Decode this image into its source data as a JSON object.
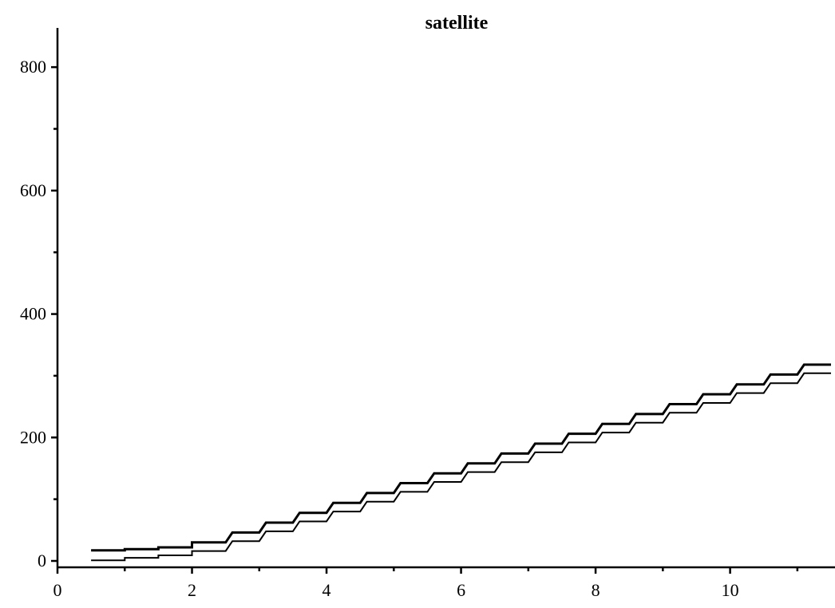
{
  "chart_data": {
    "type": "line",
    "title": "satellite",
    "xlabel": "",
    "ylabel": "",
    "xlim": [
      0,
      11.5
    ],
    "ylim": [
      0,
      870
    ],
    "x_ticks_major": [
      0,
      2,
      4,
      6,
      8,
      10
    ],
    "x_ticks_minor": [
      1,
      3,
      5,
      7,
      9,
      11
    ],
    "y_ticks_major": [
      0,
      200,
      400,
      600,
      800
    ],
    "y_ticks_minor": [
      100,
      300,
      500,
      700
    ],
    "grid": false,
    "legend": "none",
    "series": [
      {
        "style": "step",
        "x": [
          0.5,
          1.0,
          1.0,
          1.5,
          1.5,
          2.0,
          2.0,
          2.5,
          2.6,
          3.0,
          3.1,
          3.5,
          3.6,
          4.0,
          4.1,
          4.5,
          4.6,
          5.0,
          5.1,
          5.5,
          5.6,
          6.0,
          6.1,
          6.5,
          6.6,
          7.0,
          7.1,
          7.5,
          7.6,
          8.0,
          8.1,
          8.5,
          8.6,
          9.0,
          9.1,
          9.5,
          9.6,
          10.0,
          10.1,
          10.5,
          10.6,
          11.0,
          11.1,
          11.5
        ],
        "y": [
          17,
          17,
          19,
          19,
          22,
          22,
          30,
          30,
          46,
          46,
          62,
          62,
          78,
          78,
          94,
          94,
          110,
          110,
          126,
          126,
          142,
          142,
          158,
          158,
          174,
          174,
          190,
          190,
          206,
          206,
          222,
          222,
          238,
          238,
          254,
          254,
          270,
          270,
          286,
          286,
          302,
          302,
          318,
          318
        ]
      },
      {
        "style": "step",
        "x": [
          0.5,
          1.0,
          1.0,
          1.5,
          1.5,
          2.0,
          2.0,
          2.5,
          2.6,
          3.0,
          3.1,
          3.5,
          3.6,
          4.0,
          4.1,
          4.5,
          4.6,
          5.0,
          5.1,
          5.5,
          5.6,
          6.0,
          6.1,
          6.5,
          6.6,
          7.0,
          7.1,
          7.5,
          7.6,
          8.0,
          8.1,
          8.5,
          8.6,
          9.0,
          9.1,
          9.5,
          9.6,
          10.0,
          10.1,
          10.5,
          10.6,
          11.0,
          11.1,
          11.5
        ],
        "y": [
          1,
          1,
          5,
          5,
          9,
          9,
          16,
          16,
          32,
          32,
          48,
          48,
          64,
          64,
          80,
          80,
          96,
          96,
          112,
          112,
          128,
          128,
          144,
          144,
          160,
          160,
          176,
          176,
          192,
          192,
          208,
          208,
          224,
          224,
          240,
          240,
          256,
          256,
          272,
          272,
          288,
          288,
          304,
          304
        ]
      }
    ]
  }
}
